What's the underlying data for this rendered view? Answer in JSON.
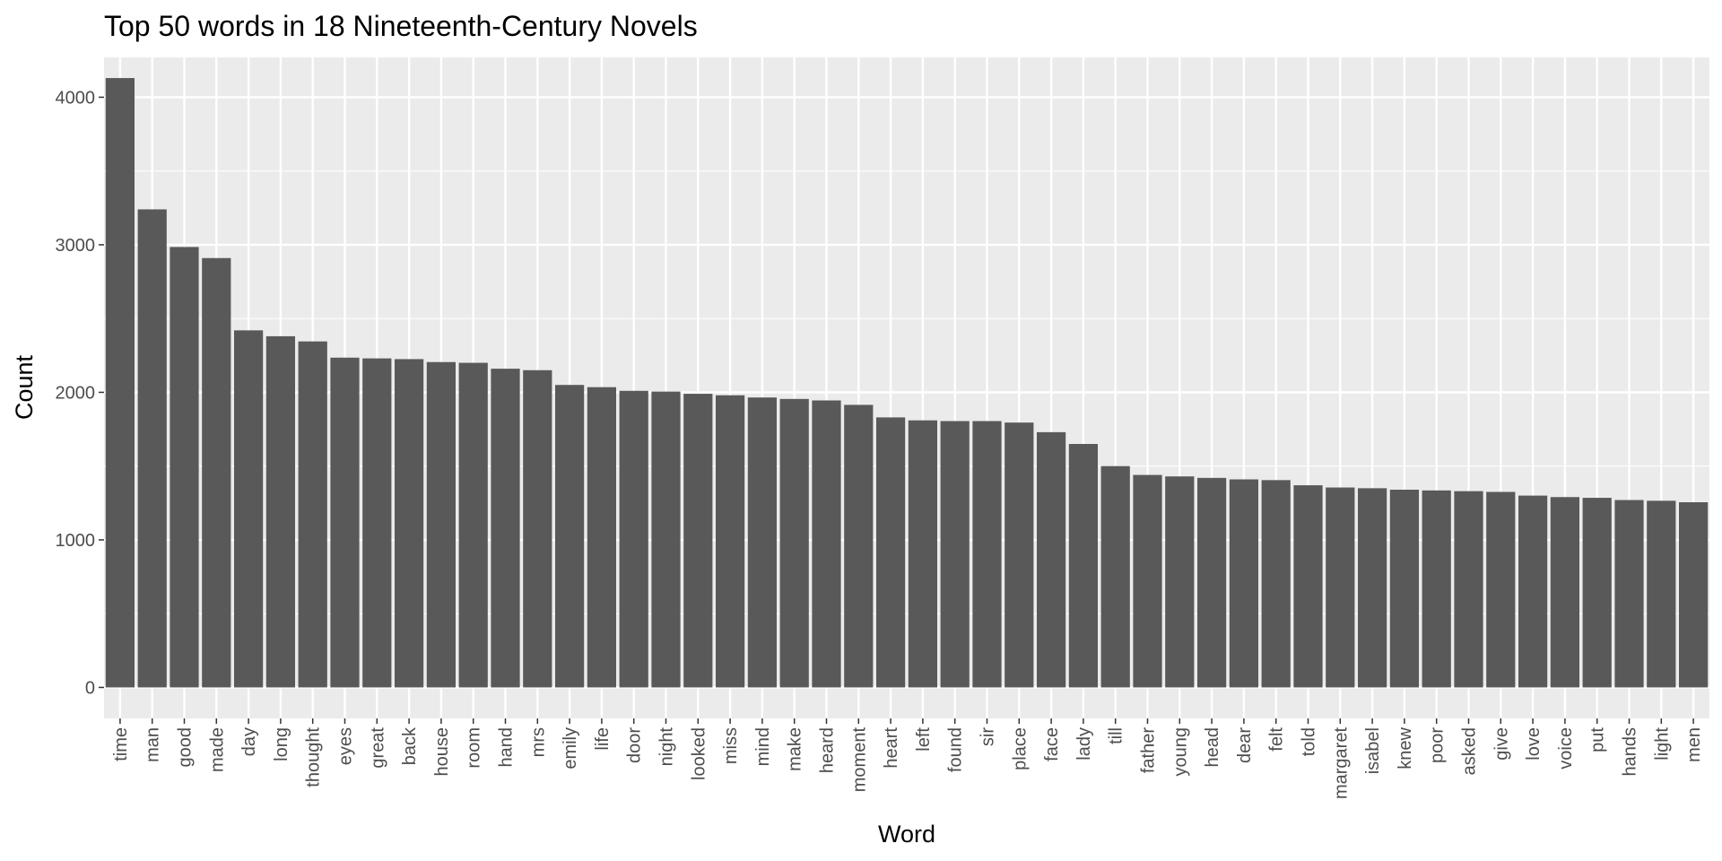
{
  "chart_data": {
    "type": "bar",
    "title": "Top 50 words in 18 Nineteenth-Century Novels",
    "xlabel": "Word",
    "ylabel": "Count",
    "ylim": [
      -210,
      4270
    ],
    "yticks": [
      0,
      1000,
      2000,
      3000,
      4000
    ],
    "grid": true,
    "colors": {
      "bar": "#595959",
      "panel": "#ebebeb",
      "grid": "#ffffff",
      "tick": "#333333"
    },
    "categories": [
      "time",
      "man",
      "good",
      "made",
      "day",
      "long",
      "thought",
      "eyes",
      "great",
      "back",
      "house",
      "room",
      "hand",
      "mrs",
      "emily",
      "life",
      "door",
      "night",
      "looked",
      "miss",
      "mind",
      "make",
      "heard",
      "moment",
      "heart",
      "left",
      "found",
      "sir",
      "place",
      "face",
      "lady",
      "till",
      "father",
      "young",
      "head",
      "dear",
      "felt",
      "told",
      "margaret",
      "isabel",
      "knew",
      "poor",
      "asked",
      "give",
      "love",
      "voice",
      "put",
      "hands",
      "light",
      "men"
    ],
    "values": [
      4130,
      3240,
      2985,
      2910,
      2420,
      2380,
      2345,
      2235,
      2230,
      2225,
      2205,
      2200,
      2160,
      2150,
      2050,
      2035,
      2010,
      2005,
      1990,
      1980,
      1965,
      1955,
      1945,
      1915,
      1830,
      1810,
      1805,
      1805,
      1795,
      1730,
      1650,
      1500,
      1440,
      1430,
      1420,
      1410,
      1405,
      1370,
      1355,
      1350,
      1340,
      1335,
      1330,
      1325,
      1300,
      1290,
      1285,
      1270,
      1265,
      1255
    ]
  }
}
